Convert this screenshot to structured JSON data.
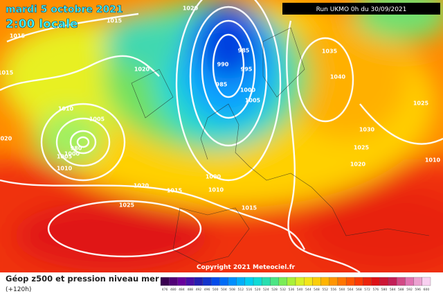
{
  "header": {
    "date": "mardi 5 octobre 2021",
    "time": "2:00 locale",
    "run": "Run UKMO 0h du 30/09/2021"
  },
  "isobar_labels": [
    "1020",
    "1015",
    "1015",
    "1020",
    "1015",
    "1010",
    "1005",
    "980",
    "1000",
    "1005",
    "1010",
    "1020",
    "1015",
    "1025",
    "1000",
    "1010",
    "1015",
    "985",
    "990",
    "995",
    "985",
    "1000",
    "1005",
    "1035",
    "1040",
    "1025",
    "1030",
    "1025",
    "1020",
    "1010",
    "1020"
  ],
  "copyright": "Copyright 2021 Meteociel.fr",
  "legend": {
    "title": "Géop z500 et pression niveau mer",
    "subtitle": "(+120h)",
    "scale": [
      "476",
      "480",
      "484",
      "488",
      "492",
      "496",
      "500",
      "504",
      "508",
      "512",
      "516",
      "520",
      "524",
      "528",
      "532",
      "536",
      "540",
      "544",
      "548",
      "552",
      "556",
      "560",
      "564",
      "568",
      "572",
      "576",
      "580",
      "584",
      "588",
      "592",
      "596",
      "600"
    ]
  }
}
